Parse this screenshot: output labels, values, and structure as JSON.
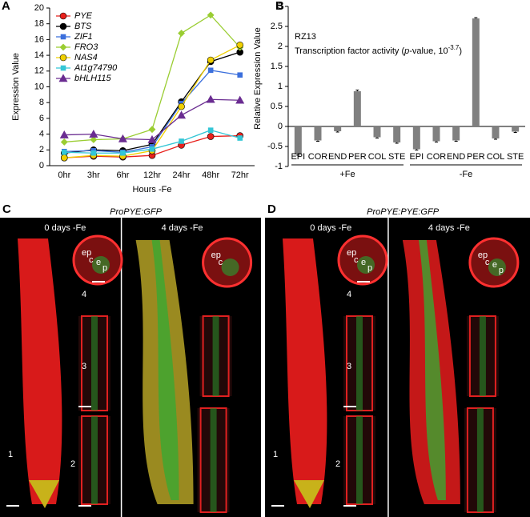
{
  "chart_data": [
    {
      "type": "line",
      "label": "A",
      "x_label": "Hours -Fe",
      "y_label": "Expression Value",
      "categories": [
        "0hr",
        "3hr",
        "6hr",
        "12hr",
        "24hr",
        "48hr",
        "72hr"
      ],
      "ylim": [
        0,
        20
      ],
      "yticks": [
        0,
        2,
        4,
        6,
        8,
        10,
        12,
        14,
        16,
        18,
        20
      ],
      "grid": false,
      "legend": "top-left",
      "series": [
        {
          "name": "PYE",
          "color": "#e8201c",
          "marker": "circle",
          "values": [
            1.0,
            1.2,
            1.1,
            1.3,
            2.6,
            3.7,
            3.8
          ]
        },
        {
          "name": "BTS",
          "color": "#000000",
          "marker": "circle",
          "values": [
            1.6,
            2.0,
            1.9,
            2.7,
            8.1,
            13.2,
            14.4
          ]
        },
        {
          "name": "ZIF1",
          "color": "#3b6fdc",
          "marker": "square",
          "values": [
            1.8,
            1.9,
            1.7,
            2.4,
            7.9,
            12.1,
            11.5
          ]
        },
        {
          "name": "FRO3",
          "color": "#9acd32",
          "marker": "diamond",
          "values": [
            3.0,
            3.3,
            3.4,
            4.6,
            16.8,
            19.1,
            15.0
          ]
        },
        {
          "name": "NAS4",
          "color": "#f0d000",
          "marker": "circle",
          "values": [
            1.0,
            1.3,
            1.2,
            1.9,
            7.5,
            13.4,
            15.3
          ]
        },
        {
          "name": "At1g74790",
          "color": "#33c6d6",
          "marker": "square",
          "values": [
            1.7,
            1.6,
            1.6,
            2.1,
            3.1,
            4.5,
            3.5
          ]
        },
        {
          "name": "bHLH115",
          "color": "#6a2c91",
          "marker": "triangle",
          "values": [
            3.9,
            4.0,
            3.4,
            3.3,
            6.4,
            8.4,
            8.3
          ]
        }
      ]
    },
    {
      "type": "bar",
      "label": "B",
      "y_label": "Relative Expression Value",
      "annotation": "RZ13",
      "annotation_parts": [
        "Transcription factor activity (",
        "p",
        "-value, 10",
        "-3.7",
        ")"
      ],
      "categories": [
        "EPI",
        "COR",
        "END",
        "PER",
        "COL",
        "STE",
        "EPI",
        "COR",
        "END",
        "PER",
        "COL",
        "STE"
      ],
      "groups": [
        "+Fe",
        "-Fe"
      ],
      "values": [
        -0.7,
        -0.35,
        -0.12,
        0.88,
        -0.27,
        -0.4,
        -0.57,
        -0.37,
        -0.35,
        2.7,
        -0.3,
        -0.13
      ],
      "errors": [
        0.02,
        0.02,
        0.02,
        0.03,
        0.02,
        0.02,
        0.02,
        0.02,
        0.02,
        0.02,
        0.02,
        0.02
      ],
      "color": "#808080",
      "ylim": [
        -1,
        3
      ],
      "yticks": [
        -1,
        -0.5,
        0,
        0.5,
        1,
        1.5,
        2,
        2.5,
        3
      ],
      "grid": false
    }
  ],
  "panels": [
    {
      "label": "C",
      "title": "ProPYE:GFP",
      "left_caption": "0 days -Fe",
      "right_caption": "4 days -Fe",
      "insets": [
        "1",
        "2",
        "3",
        "4"
      ],
      "cells_left": [
        "ep",
        "c",
        "e",
        "p"
      ],
      "cells_right": [
        "ep",
        "c"
      ]
    },
    {
      "label": "D",
      "title": "ProPYE:PYE:GFP",
      "left_caption": "0 days -Fe",
      "right_caption": "4 days -Fe",
      "insets": [
        "1",
        "2",
        "3",
        "4"
      ],
      "cells_left": [
        "ep",
        "c",
        "e",
        "p"
      ],
      "cells_right": [
        "ep",
        "c",
        "e",
        "p"
      ]
    }
  ]
}
